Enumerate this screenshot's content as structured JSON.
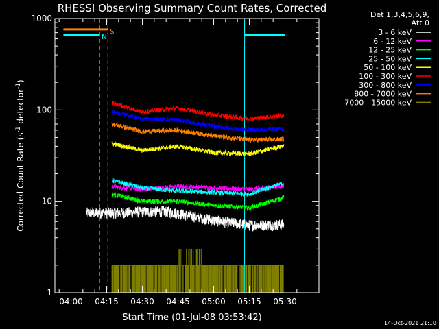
{
  "chart_data": {
    "type": "line",
    "title": "RHESSI Observing Summary Count Rates, Corrected",
    "xlabel": "Start Time (01-Jul-08 03:53:42)",
    "ylabel": "Corrected Count Rate (s⁻¹ detector⁻¹)",
    "ylabel_main": "Corrected Count Rate (s",
    "ylabel_sup1": "-1",
    "ylabel_mid": " detector",
    "ylabel_sup2": "-1",
    "ylabel_end": ")",
    "yscale": "log",
    "ylim": [
      1,
      1000
    ],
    "xlim_minutes": [
      -2.0,
      34.5
    ],
    "x_unit": "minutes after 04:00 UT",
    "yticks": [
      {
        "v": 1,
        "label": "1"
      },
      {
        "v": 10,
        "label": "10"
      },
      {
        "v": 100,
        "label": "100"
      },
      {
        "v": 1000,
        "label": "1000"
      }
    ],
    "xticks": [
      {
        "t": 0,
        "label": "04:00"
      },
      {
        "t": 15,
        "label": "04:15"
      },
      {
        "t": 30,
        "label": "04:30"
      },
      {
        "t": 45,
        "label": "04:45"
      },
      {
        "t": 60,
        "label": "05:00"
      },
      {
        "t": 75,
        "label": "05:15"
      },
      {
        "t": 90,
        "label": "05:30"
      }
    ],
    "legend": {
      "placement": "right",
      "header1": "Det 1,3,4,5,6,9,",
      "header2": "Att 0"
    },
    "series": [
      {
        "name": "3 - 6 keV",
        "color": "#ffffff",
        "start": 6.5,
        "points": [
          [
            17,
            7.5
          ],
          [
            40,
            7.8
          ],
          [
            60,
            6.2
          ],
          [
            75,
            5.5
          ],
          [
            92,
            5.6
          ]
        ]
      },
      {
        "name": "6 - 12 keV",
        "color": "#ff00ff",
        "start": 17.2,
        "points": [
          [
            17,
            14.5
          ],
          [
            30,
            13.5
          ],
          [
            45,
            14.5
          ],
          [
            60,
            14.0
          ],
          [
            75,
            13.5
          ],
          [
            92,
            15.0
          ]
        ]
      },
      {
        "name": "12 - 25 keV",
        "color": "#00ff00",
        "start": 17.2,
        "points": [
          [
            17,
            12.0
          ],
          [
            30,
            10.0
          ],
          [
            45,
            10.0
          ],
          [
            60,
            9.0
          ],
          [
            75,
            8.5
          ],
          [
            92,
            11.5
          ]
        ]
      },
      {
        "name": "25 - 50 keV",
        "color": "#00ffff",
        "start": 17.2,
        "points": [
          [
            17,
            17.0
          ],
          [
            30,
            14.0
          ],
          [
            45,
            13.0
          ],
          [
            60,
            12.5
          ],
          [
            75,
            12.0
          ],
          [
            90,
            16.0
          ],
          [
            92,
            22.0
          ]
        ]
      },
      {
        "name": "50 - 100 keV",
        "color": "#ffff00",
        "start": 17.2,
        "points": [
          [
            17,
            43.0
          ],
          [
            30,
            36.0
          ],
          [
            45,
            40.0
          ],
          [
            60,
            34.0
          ],
          [
            75,
            33.0
          ],
          [
            92,
            42.0
          ]
        ]
      },
      {
        "name": "100 - 300 keV",
        "color": "#ff0000",
        "start": 17.2,
        "points": [
          [
            17,
            120.0
          ],
          [
            30,
            95.0
          ],
          [
            45,
            105.0
          ],
          [
            60,
            88.0
          ],
          [
            75,
            80.0
          ],
          [
            92,
            88.0
          ]
        ]
      },
      {
        "name": "300 - 800 keV",
        "color": "#0000ff",
        "start": 17.2,
        "points": [
          [
            17,
            95.0
          ],
          [
            30,
            80.0
          ],
          [
            45,
            78.0
          ],
          [
            60,
            66.0
          ],
          [
            75,
            60.0
          ],
          [
            92,
            62.0
          ]
        ]
      },
      {
        "name": "800 - 7000 keV",
        "color": "#ff8000",
        "start": 17.2,
        "points": [
          [
            17,
            70.0
          ],
          [
            30,
            58.0
          ],
          [
            45,
            60.0
          ],
          [
            60,
            52.0
          ],
          [
            75,
            47.0
          ],
          [
            92,
            48.0
          ]
        ]
      },
      {
        "name": "7000 - 15000 keV",
        "color": "#808000",
        "start": 17.2,
        "points": [
          [
            17,
            2.0
          ],
          [
            92,
            2.0
          ]
        ]
      }
    ],
    "bars": [
      {
        "name": "S",
        "color": "#ff8000",
        "y": 760,
        "t1": -3.2,
        "t2": 15.5
      },
      {
        "name": "N",
        "color": "#00ffff",
        "y": 660,
        "t1": -3.2,
        "t2": 12.0
      },
      {
        "name": "",
        "color": "#00ffff",
        "y": 660,
        "t1": 73.0,
        "t2": 90.0
      }
    ],
    "vlines": [
      {
        "t": 12.0,
        "color": "#00ffff",
        "style": "dashed"
      },
      {
        "t": 15.5,
        "color": "#ff8000",
        "style": "dashed"
      },
      {
        "t": 73.0,
        "color": "#00ffff",
        "style": "solid"
      },
      {
        "t": 90.0,
        "color": "#00ffff",
        "style": "dashed"
      }
    ],
    "footer": "14-Oct-2021 21:10"
  }
}
